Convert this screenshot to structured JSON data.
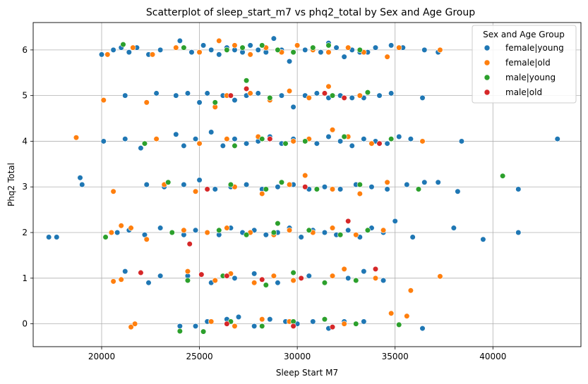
{
  "chart_data": {
    "type": "scatter",
    "title": "Scatterplot of sleep_start_m7 vs phq2_total by Sex and Age Group",
    "xlabel": "Sleep Start M7",
    "ylabel": "Phq2 Total",
    "xlim": [
      16500,
      44500
    ],
    "ylim": [
      -0.5,
      6.6
    ],
    "xticks": [
      20000,
      25000,
      30000,
      35000,
      40000
    ],
    "yticks": [
      0,
      1,
      2,
      3,
      4,
      5,
      6
    ],
    "grid": true,
    "legend": {
      "title": "Sex and Age Group",
      "placement": "top-right"
    },
    "series": [
      {
        "name": "female|young",
        "color": "#1f77b4",
        "x": [
          20000,
          20600,
          21000,
          21400,
          21800,
          22400,
          23000,
          24000,
          24600,
          25200,
          25600,
          26000,
          26400,
          26800,
          27200,
          27600,
          28000,
          28400,
          28800,
          29200,
          29600,
          30000,
          30400,
          30800,
          31200,
          31600,
          32000,
          32400,
          32800,
          33200,
          33600,
          34000,
          34800,
          35400,
          36500,
          37200,
          21200,
          22800,
          23800,
          24400,
          25000,
          25400,
          26200,
          26800,
          27400,
          28000,
          28600,
          29200,
          29800,
          30400,
          31000,
          31600,
          32200,
          32800,
          33400,
          34200,
          34800,
          36400,
          20100,
          21200,
          22000,
          23800,
          24200,
          24800,
          25600,
          26200,
          26800,
          27400,
          28000,
          28600,
          29200,
          29800,
          30400,
          31000,
          31600,
          32200,
          32800,
          33400,
          34000,
          34600,
          35200,
          35800,
          38400,
          43300,
          18900,
          19000,
          22300,
          23200,
          24200,
          25000,
          25800,
          26600,
          27400,
          28200,
          29000,
          29800,
          30600,
          31400,
          32200,
          33000,
          33800,
          34600,
          35600,
          36500,
          37200,
          38200,
          41300,
          17300,
          17700,
          20800,
          21400,
          22200,
          23000,
          23600,
          24200,
          24800,
          25400,
          26000,
          26600,
          27200,
          27800,
          28400,
          29000,
          29600,
          30200,
          30800,
          31400,
          32000,
          32600,
          33200,
          33800,
          34400,
          35000,
          35900,
          38000,
          39500,
          41300,
          21200,
          22400,
          23000,
          24400,
          25600,
          26800,
          27800,
          28400,
          29000,
          29800,
          30600,
          31400,
          32600,
          33400,
          34400,
          24000,
          24800,
          25400,
          26400,
          27000,
          27800,
          28600,
          29400,
          30000,
          30800,
          31600,
          32400,
          33400,
          36400
        ],
        "y": [
          5.9,
          6.0,
          6.05,
          5.95,
          6.05,
          5.9,
          6.0,
          6.2,
          5.95,
          6.1,
          6.0,
          5.9,
          6.05,
          6.0,
          5.95,
          6.1,
          6.0,
          5.95,
          6.25,
          6.0,
          5.75,
          6.1,
          6.0,
          6.05,
          5.95,
          6.15,
          6.05,
          5.85,
          6.0,
          5.95,
          5.95,
          6.05,
          6.1,
          6.05,
          6.0,
          5.95,
          5.0,
          5.05,
          5.0,
          5.05,
          4.85,
          5.05,
          5.0,
          4.9,
          5.0,
          5.05,
          4.95,
          5.0,
          4.75,
          5.0,
          5.05,
          4.95,
          5.0,
          4.95,
          4.95,
          5.0,
          5.05,
          4.95,
          4.0,
          4.05,
          3.85,
          4.15,
          3.9,
          4.05,
          4.2,
          3.9,
          4.05,
          3.95,
          4.0,
          4.1,
          3.95,
          4.05,
          4.0,
          3.95,
          4.1,
          4.0,
          3.9,
          4.05,
          4.0,
          3.95,
          4.1,
          4.05,
          4.0,
          4.05,
          3.2,
          3.05,
          3.05,
          3.0,
          3.05,
          3.15,
          2.95,
          3.0,
          3.05,
          2.95,
          3.0,
          3.05,
          2.95,
          3.0,
          2.95,
          3.05,
          3.0,
          2.95,
          3.05,
          3.1,
          3.1,
          2.9,
          2.95,
          1.9,
          1.9,
          2.0,
          2.05,
          1.95,
          2.1,
          2.0,
          1.95,
          2.05,
          2.0,
          1.95,
          2.1,
          2.0,
          2.05,
          1.95,
          2.0,
          2.1,
          1.9,
          2.05,
          2.0,
          1.95,
          2.05,
          1.9,
          2.1,
          2.0,
          2.25,
          1.9,
          2.1,
          1.85,
          2.0,
          1.15,
          0.9,
          1.05,
          1.05,
          0.9,
          1.0,
          1.1,
          0.85,
          0.9,
          0.95,
          1.05,
          0.9,
          1.0,
          1.15,
          0.95,
          -0.05,
          -0.05,
          0.05,
          0.1,
          0.15,
          -0.05,
          0.1,
          0.05,
          0.0,
          0.05,
          -0.1,
          0.05,
          0.05,
          -0.1
        ],
        "r": 3.8
      },
      {
        "name": "female|old",
        "color": "#ff7f0e",
        "x": [
          20300,
          21600,
          22600,
          23800,
          25000,
          26000,
          26800,
          27600,
          28400,
          29200,
          30000,
          30800,
          31600,
          32600,
          33400,
          34600,
          35200,
          37300,
          20100,
          22300,
          25800,
          26400,
          27600,
          28600,
          29600,
          30600,
          31600,
          32400,
          33200,
          18700,
          22800,
          25000,
          26400,
          28000,
          29800,
          30600,
          31800,
          32600,
          33800,
          36400,
          20600,
          23200,
          24800,
          26800,
          28200,
          29600,
          30400,
          31800,
          33200,
          34600,
          20500,
          21000,
          21500,
          22300,
          24200,
          25400,
          26400,
          27600,
          28800,
          29600,
          30800,
          31800,
          33000,
          34400,
          20600,
          21000,
          24400,
          25800,
          26600,
          27800,
          28800,
          29800,
          31800,
          32400,
          34000,
          35800,
          37300,
          21500,
          21700,
          25600,
          26800,
          28200,
          29600,
          32400,
          34800,
          35600
        ],
        "y": [
          5.9,
          6.05,
          5.9,
          6.05,
          5.95,
          6.2,
          6.1,
          5.9,
          6.05,
          5.95,
          6.1,
          6.0,
          5.95,
          6.05,
          5.95,
          5.85,
          6.05,
          6.0,
          4.9,
          4.85,
          4.75,
          5.0,
          5.05,
          4.9,
          5.1,
          4.95,
          5.2,
          4.95,
          5.0,
          4.08,
          4.05,
          3.95,
          4.05,
          4.1,
          4.0,
          4.05,
          4.25,
          4.1,
          3.95,
          4.0,
          2.9,
          3.05,
          2.9,
          3.0,
          2.85,
          3.05,
          3.25,
          2.95,
          2.85,
          3.1,
          2.0,
          2.15,
          2.1,
          1.85,
          2.05,
          2.0,
          2.1,
          2.0,
          1.95,
          2.05,
          2.0,
          2.1,
          1.95,
          2.05,
          0.93,
          0.97,
          1.15,
          0.95,
          1.1,
          0.9,
          1.05,
          0.95,
          1.05,
          1.2,
          1.0,
          0.73,
          1.04,
          -0.07,
          0.0,
          0.05,
          -0.05,
          0.1,
          0.05,
          0.0,
          0.23,
          0.17
        ],
        "r": 3.8
      },
      {
        "name": "male|young",
        "color": "#2ca02c",
        "x": [
          21100,
          24200,
          26400,
          27200,
          28200,
          29000,
          29800,
          30800,
          31600,
          33200,
          27400,
          25800,
          28600,
          31800,
          33600,
          22200,
          26800,
          28200,
          29400,
          30400,
          32400,
          34800,
          23400,
          26600,
          28400,
          29200,
          31000,
          33200,
          36200,
          40500,
          20200,
          23600,
          26000,
          27400,
          28800,
          29000,
          30600,
          32200,
          33600,
          24400,
          26200,
          28400,
          29800,
          31400,
          33000,
          24000,
          25200,
          26600,
          28200,
          29800,
          31400,
          33000,
          35200
        ],
        "y": [
          6.12,
          6.05,
          6.0,
          6.05,
          6.1,
          6.0,
          5.95,
          6.05,
          6.1,
          6.0,
          5.33,
          4.85,
          4.95,
          5.0,
          5.07,
          3.95,
          3.9,
          4.05,
          3.95,
          4.0,
          4.1,
          4.05,
          3.1,
          3.05,
          2.95,
          3.1,
          2.95,
          3.05,
          2.95,
          3.24,
          1.9,
          2.0,
          2.05,
          1.95,
          2.0,
          2.2,
          2.05,
          1.95,
          2.05,
          0.95,
          1.05,
          0.85,
          1.12,
          0.9,
          0.95,
          -0.16,
          -0.17,
          0.05,
          -0.05,
          0.05,
          0.1,
          0.0,
          -0.02
        ],
        "r": 3.8
      },
      {
        "name": "male|old",
        "color": "#d62728",
        "x": [
          26600,
          27400,
          31400,
          32400,
          28600,
          34200,
          25400,
          30400,
          24500,
          32600,
          22000,
          25100,
          26400,
          28200,
          30200,
          34000,
          26400,
          29800,
          31800
        ],
        "y": [
          5.0,
          5.15,
          5.05,
          4.95,
          4.05,
          3.95,
          2.95,
          3.0,
          1.75,
          2.25,
          1.12,
          1.08,
          1.05,
          0.97,
          1.0,
          1.2,
          0.0,
          -0.05,
          -0.07
        ],
        "r": 3.8
      }
    ]
  }
}
